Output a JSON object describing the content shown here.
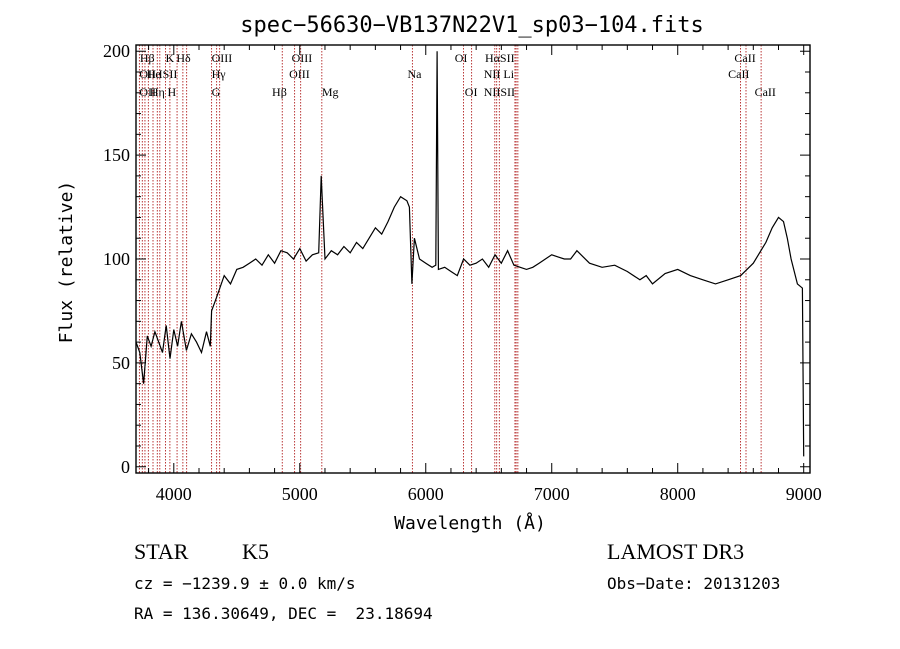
{
  "chart_data": {
    "type": "line",
    "title": "spec−56630−VB137N22V1_sp03−104.fits",
    "xlabel": "Wavelength (Å)",
    "ylabel": "Flux (relative)",
    "xlim": [
      3700,
      9050
    ],
    "ylim": [
      -3,
      203
    ],
    "xticks": [
      4000,
      5000,
      6000,
      7000,
      8000,
      9000
    ],
    "yticks": [
      0,
      50,
      100,
      150,
      200
    ],
    "grid": false,
    "line_color": "#000000",
    "marker_color": "#b22222",
    "series": [
      {
        "x": [
          3700,
          3730,
          3760,
          3790,
          3820,
          3850,
          3880,
          3910,
          3940,
          3970,
          4000,
          4030,
          4060,
          4100,
          4140,
          4180,
          4220,
          4260,
          4290,
          4300,
          4330,
          4360,
          4400,
          4450,
          4500,
          4550,
          4600,
          4650,
          4700,
          4750,
          4800,
          4850,
          4900,
          4950,
          5000,
          5050,
          5100,
          5150,
          5170,
          5200,
          5250,
          5300,
          5350,
          5400,
          5450,
          5500,
          5550,
          5600,
          5650,
          5700,
          5750,
          5800,
          5850,
          5870,
          5890,
          5910,
          5950,
          6000,
          6050,
          6080,
          6090,
          6100,
          6150,
          6200,
          6250,
          6300,
          6350,
          6400,
          6450,
          6500,
          6550,
          6600,
          6650,
          6700,
          6750,
          6800,
          6850,
          6900,
          6950,
          7000,
          7050,
          7100,
          7150,
          7200,
          7300,
          7400,
          7500,
          7600,
          7700,
          7750,
          7800,
          7900,
          8000,
          8100,
          8200,
          8300,
          8400,
          8500,
          8600,
          8700,
          8750,
          8800,
          8840,
          8870,
          8900,
          8950,
          8990,
          9000
        ],
        "y": [
          60,
          55,
          40,
          63,
          58,
          65,
          60,
          55,
          68,
          52,
          66,
          58,
          70,
          56,
          64,
          60,
          55,
          65,
          58,
          75,
          80,
          85,
          92,
          88,
          95,
          96,
          98,
          100,
          97,
          102,
          98,
          104,
          103,
          100,
          105,
          99,
          102,
          103,
          140,
          100,
          104,
          102,
          106,
          103,
          108,
          105,
          110,
          115,
          112,
          118,
          125,
          130,
          128,
          125,
          88,
          110,
          100,
          98,
          96,
          97,
          200,
          95,
          96,
          94,
          92,
          100,
          97,
          98,
          100,
          96,
          102,
          98,
          104,
          97,
          96,
          95,
          96,
          98,
          100,
          102,
          101,
          100,
          100,
          104,
          98,
          96,
          97,
          94,
          90,
          92,
          88,
          93,
          95,
          92,
          90,
          88,
          90,
          92,
          98,
          108,
          115,
          120,
          118,
          110,
          100,
          88,
          86,
          5
        ],
        "name": ""
      }
    ],
    "line_markers": [
      {
        "x": 3727,
        "label": "OII"
      },
      {
        "x": 3750,
        "label": ""
      },
      {
        "x": 3771,
        "label": ""
      },
      {
        "x": 3798,
        "label": ""
      },
      {
        "x": 3835,
        "label": "Hη"
      },
      {
        "x": 3869,
        "label": "OIII"
      },
      {
        "x": 3889,
        "label": "HeI"
      },
      {
        "x": 3934,
        "label": "K"
      },
      {
        "x": 3969,
        "label": "H"
      },
      {
        "x": 4026,
        "label": "HeI"
      },
      {
        "x": 4072,
        "label": "SII"
      },
      {
        "x": 4102,
        "label": "Hδ"
      },
      {
        "x": 4300,
        "label": "G"
      },
      {
        "x": 4340,
        "label": "Hγ"
      },
      {
        "x": 4364,
        "label": "OIII"
      },
      {
        "x": 4861,
        "label": "Hβ"
      },
      {
        "x": 4959,
        "label": "OIII"
      },
      {
        "x": 5007,
        "label": "OIII"
      },
      {
        "x": 5175,
        "label": "Mg"
      },
      {
        "x": 5894,
        "label": "Na"
      },
      {
        "x": 6300,
        "label": "OI"
      },
      {
        "x": 6364,
        "label": "OI"
      },
      {
        "x": 6548,
        "label": "NII"
      },
      {
        "x": 6563,
        "label": "Hα"
      },
      {
        "x": 6584,
        "label": "NII"
      },
      {
        "x": 6708,
        "label": "Li"
      },
      {
        "x": 6717,
        "label": "SII"
      },
      {
        "x": 6731,
        "label": "SII"
      },
      {
        "x": 8498,
        "label": "CaII"
      },
      {
        "x": 8542,
        "label": "CaII"
      },
      {
        "x": 8662,
        "label": "CaII"
      }
    ],
    "annotations": [
      {
        "text": "Hβ",
        "x": 3731,
        "row": 1
      },
      {
        "text": "OII",
        "x": 3727,
        "row": 2
      },
      {
        "text": "OII",
        "x": 3727,
        "row": 3
      },
      {
        "text": "Hη",
        "x": 3810,
        "row": 3
      },
      {
        "text": "He",
        "x": 3785,
        "row": 2
      },
      {
        "text": "K",
        "x": 3934,
        "row": 1
      },
      {
        "text": "ISII",
        "x": 3880,
        "row": 2
      },
      {
        "text": "H",
        "x": 3950,
        "row": 3
      },
      {
        "text": "Hδ",
        "x": 4020,
        "row": 1
      },
      {
        "text": "OIII",
        "x": 4300,
        "row": 1
      },
      {
        "text": "Hγ",
        "x": 4300,
        "row": 2
      },
      {
        "text": "G",
        "x": 4300,
        "row": 3
      },
      {
        "text": "OIII",
        "x": 4935,
        "row": 1
      },
      {
        "text": "OIII",
        "x": 4915,
        "row": 2
      },
      {
        "text": "Hβ",
        "x": 4780,
        "row": 3
      },
      {
        "text": "Mg",
        "x": 5175,
        "row": 3
      },
      {
        "text": "Na",
        "x": 5855,
        "row": 2
      },
      {
        "text": "OI",
        "x": 6230,
        "row": 1
      },
      {
        "text": "OI",
        "x": 6310,
        "row": 3
      },
      {
        "text": "HαSII",
        "x": 6470,
        "row": 1
      },
      {
        "text": "NII Li",
        "x": 6460,
        "row": 2
      },
      {
        "text": "NIISII",
        "x": 6460,
        "row": 3
      },
      {
        "text": "CaII",
        "x": 8450,
        "row": 1
      },
      {
        "text": "CaII",
        "x": 8400,
        "row": 2
      },
      {
        "text": "CaII",
        "x": 8610,
        "row": 3
      }
    ]
  },
  "info": {
    "object_type": "STAR",
    "subclass": "K5",
    "survey": "LAMOST DR3",
    "cz": "cz = −1239.9 ± 0.0 km/s",
    "obs_date": "Obs−Date: 20131203",
    "coords": "RA = 136.30649, DEC =  23.18694"
  }
}
